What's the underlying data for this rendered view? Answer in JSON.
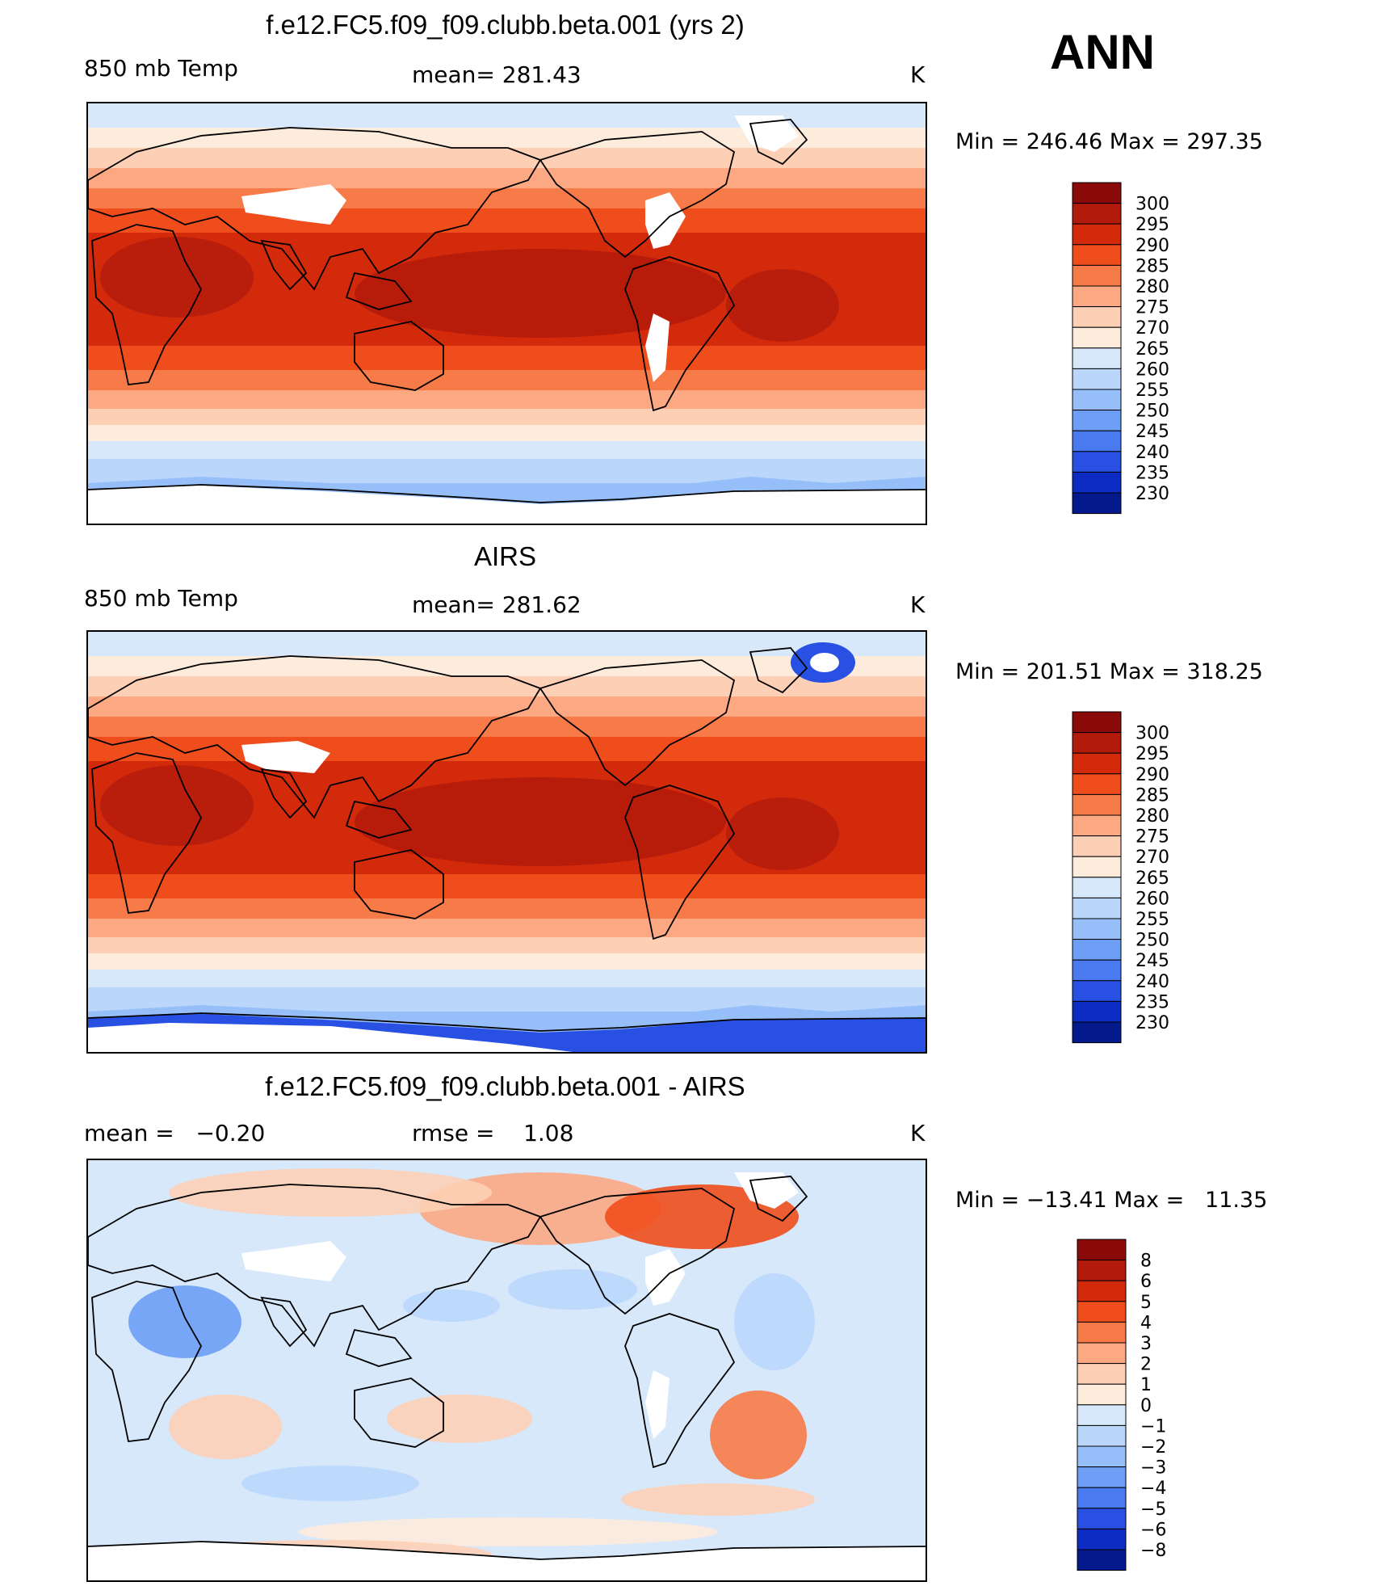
{
  "season": "ANN",
  "levels_abs": [
    "300",
    "295",
    "290",
    "285",
    "280",
    "275",
    "270",
    "265",
    "260",
    "255",
    "250",
    "245",
    "240",
    "235",
    "230"
  ],
  "levels_diff": [
    "8",
    "6",
    "5",
    "4",
    "3",
    "2",
    "1",
    "0",
    "−1",
    "−2",
    "−3",
    "−4",
    "−5",
    "−6",
    "−8"
  ],
  "colors_abs": [
    "#8a0a0a",
    "#b21a0c",
    "#d42a0c",
    "#ef4e1c",
    "#f77b48",
    "#fba883",
    "#fdd0b6",
    "#fdebdc",
    "#d7e8fb",
    "#bad7fb",
    "#96bffa",
    "#6e9ff6",
    "#4a7af0",
    "#2851e3",
    "#0c2bc2",
    "#041a8c"
  ],
  "colors_diff": [
    "#8a0a0a",
    "#b21a0c",
    "#d42a0c",
    "#ef4e1c",
    "#f77b48",
    "#fba883",
    "#fdd0b6",
    "#fdebdc",
    "#d7e8fb",
    "#bad7fb",
    "#96bffa",
    "#6e9ff6",
    "#4a7af0",
    "#2851e3",
    "#0c2bc2",
    "#041a8c"
  ],
  "panels": [
    {
      "title": "f.e12.FC5.f09_f09.clubb.beta.001 (yrs 2)",
      "left_label": "850 mb Temp",
      "center_label": "mean= 281.43",
      "units": "K",
      "minmax": "Min = 246.46 Max = 297.35",
      "kind": "abs",
      "masks": true
    },
    {
      "title": "AIRS",
      "left_label": "850 mb Temp",
      "center_label": "mean= 281.62",
      "units": "K",
      "minmax": "Min = 201.51 Max = 318.25",
      "kind": "abs",
      "masks": false
    },
    {
      "title": "f.e12.FC5.f09_f09.clubb.beta.001 - AIRS",
      "left_label": "mean =   −0.20",
      "center_label": "rmse =    1.08",
      "units": "K",
      "minmax": "Min = −13.41 Max =   11.35",
      "kind": "diff",
      "masks": true
    }
  ]
}
